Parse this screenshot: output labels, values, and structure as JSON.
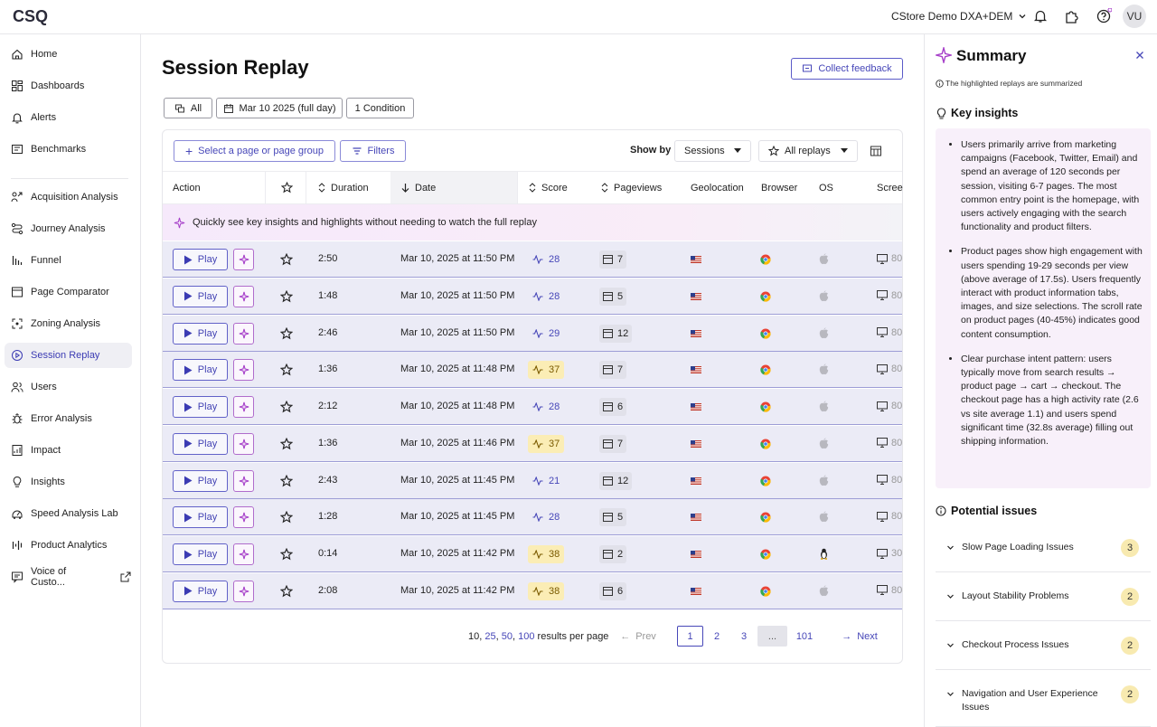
{
  "brand": {
    "logo_text": "CSQ",
    "accent": "#4747b8",
    "ai_accent": "#a63fc9",
    "warn_bg": "#fbedb5"
  },
  "topbar": {
    "workspace": "CStore Demo DXA+DEM",
    "avatar": "VU",
    "icons": [
      "bell-icon",
      "puzzle-icon",
      "help-icon"
    ]
  },
  "sidebar": {
    "items": [
      {
        "label": "Home",
        "icon": "home-icon"
      },
      {
        "label": "Dashboards",
        "icon": "dashboard-icon"
      },
      {
        "label": "Alerts",
        "icon": "bell-icon"
      },
      {
        "label": "Benchmarks",
        "icon": "benchmark-icon"
      },
      {
        "label": "Acquisition Analysis",
        "icon": "acquisition-icon"
      },
      {
        "label": "Journey Analysis",
        "icon": "journey-icon"
      },
      {
        "label": "Funnel",
        "icon": "funnel-icon"
      },
      {
        "label": "Page Comparator",
        "icon": "comparator-icon"
      },
      {
        "label": "Zoning Analysis",
        "icon": "zoning-icon"
      },
      {
        "label": "Session Replay",
        "icon": "replay-icon",
        "active": true
      },
      {
        "label": "Users",
        "icon": "users-icon"
      },
      {
        "label": "Error Analysis",
        "icon": "bug-icon"
      },
      {
        "label": "Impact",
        "icon": "impact-icon"
      },
      {
        "label": "Insights",
        "icon": "bulb-icon"
      },
      {
        "label": "Speed Analysis Lab",
        "icon": "speed-icon"
      },
      {
        "label": "Product Analytics",
        "icon": "analytics-icon"
      },
      {
        "label": "Voice of Custo...",
        "icon": "voice-icon"
      }
    ]
  },
  "main": {
    "title": "Session Replay",
    "feedback_label": "Collect feedback",
    "chips": {
      "segment": "All",
      "date": "Mar 10 2025 (full day)",
      "conditions": "1 Condition"
    },
    "toolbar": {
      "select_page": "Select a page or page group",
      "filters": "Filters",
      "show_by_label": "Show by",
      "show_by_value": "Sessions",
      "replays_value": "All replays"
    },
    "columns": [
      "Action",
      "Duration",
      "Date",
      "Score",
      "Pageviews",
      "Geolocation",
      "Browser",
      "OS",
      "Scree"
    ],
    "banner": "Quickly see key insights and highlights without needing to watch the full replay",
    "play_label": "Play",
    "rows": [
      {
        "duration": "2:50",
        "date": "Mar 10, 2025 at 11:50 PM",
        "score": "28",
        "score_warn": false,
        "pageviews": "7",
        "os": "apple",
        "screen": "80"
      },
      {
        "duration": "1:48",
        "date": "Mar 10, 2025 at 11:50 PM",
        "score": "28",
        "score_warn": false,
        "pageviews": "5",
        "os": "apple",
        "screen": "80"
      },
      {
        "duration": "2:46",
        "date": "Mar 10, 2025 at 11:50 PM",
        "score": "29",
        "score_warn": false,
        "pageviews": "12",
        "os": "apple",
        "screen": "80"
      },
      {
        "duration": "1:36",
        "date": "Mar 10, 2025 at 11:48 PM",
        "score": "37",
        "score_warn": true,
        "pageviews": "7",
        "os": "apple",
        "screen": "80"
      },
      {
        "duration": "2:12",
        "date": "Mar 10, 2025 at 11:48 PM",
        "score": "28",
        "score_warn": false,
        "pageviews": "6",
        "os": "apple",
        "screen": "80"
      },
      {
        "duration": "1:36",
        "date": "Mar 10, 2025 at 11:46 PM",
        "score": "37",
        "score_warn": true,
        "pageviews": "7",
        "os": "apple",
        "screen": "80"
      },
      {
        "duration": "2:43",
        "date": "Mar 10, 2025 at 11:45 PM",
        "score": "21",
        "score_warn": false,
        "pageviews": "12",
        "os": "apple",
        "screen": "80"
      },
      {
        "duration": "1:28",
        "date": "Mar 10, 2025 at 11:45 PM",
        "score": "28",
        "score_warn": false,
        "pageviews": "5",
        "os": "apple",
        "screen": "80"
      },
      {
        "duration": "0:14",
        "date": "Mar 10, 2025 at 11:42 PM",
        "score": "38",
        "score_warn": true,
        "pageviews": "2",
        "os": "linux",
        "screen": "30"
      },
      {
        "duration": "2:08",
        "date": "Mar 10, 2025 at 11:42 PM",
        "score": "38",
        "score_warn": true,
        "pageviews": "6",
        "os": "apple",
        "screen": "80"
      }
    ],
    "pagination": {
      "per_page_options": [
        "10",
        "25",
        "50",
        "100"
      ],
      "per_page_suffix": "results per page",
      "prev": "Prev",
      "next": "Next",
      "pages": [
        "1",
        "2",
        "3",
        "...",
        "101"
      ],
      "current": "1"
    }
  },
  "summary": {
    "title": "Summary",
    "subtitle": "The highlighted replays are summarized",
    "key_insights_title": "Key insights",
    "insights": [
      "Users primarily arrive from marketing campaigns (Facebook, Twitter, Email) and spend an average of 120 seconds per session, visiting 6-7 pages. The most common entry point is the homepage, with users actively engaging with the search functionality and product filters.",
      "Product pages show high engagement with users spending 19-29 seconds per view (above average of 17.5s). Users frequently interact with product information tabs, images, and size selections. The scroll rate on product pages (40-45%) indicates good content consumption.",
      "Clear purchase intent pattern: users typically move from search results → product page → cart → checkout. The checkout page has a high activity rate (2.6 vs site average 1.1) and users spend significant time (32.8s average) filling out shipping information."
    ],
    "potential_issues_title": "Potential issues",
    "issues": [
      {
        "label": "Slow Page Loading Issues",
        "count": "3"
      },
      {
        "label": "Layout Stability Problems",
        "count": "2"
      },
      {
        "label": "Checkout Process Issues",
        "count": "2"
      },
      {
        "label": "Navigation and User Experience Issues",
        "count": "2"
      }
    ]
  }
}
